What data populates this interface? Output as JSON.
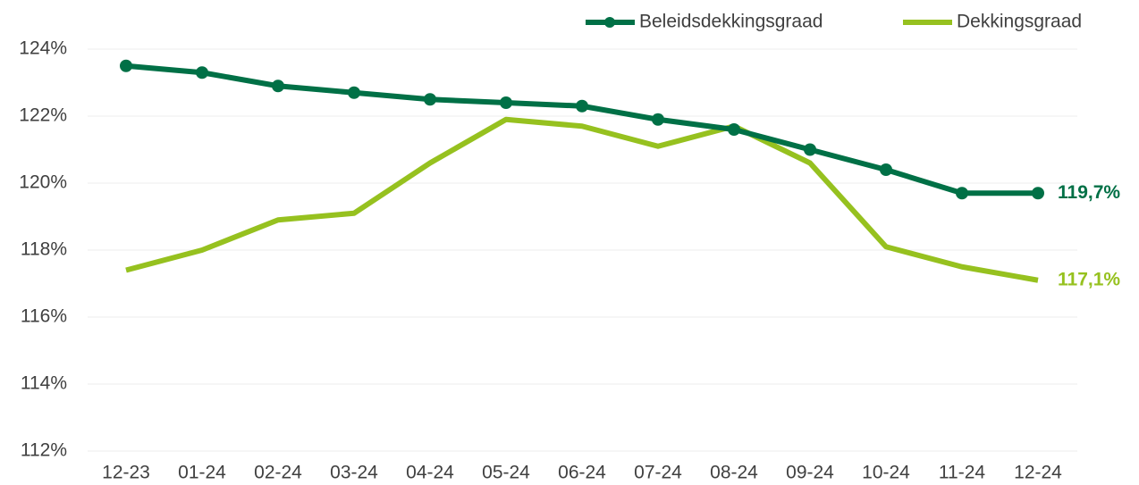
{
  "chart_data": {
    "type": "line",
    "categories": [
      "12-23",
      "01-24",
      "02-24",
      "03-24",
      "04-24",
      "05-24",
      "06-24",
      "07-24",
      "08-24",
      "09-24",
      "10-24",
      "11-24",
      "12-24"
    ],
    "series": [
      {
        "name": "Beleidsdekkingsgraad",
        "color": "#007046",
        "markers": true,
        "values": [
          123.5,
          123.3,
          122.9,
          122.7,
          122.5,
          122.4,
          122.3,
          121.9,
          121.6,
          121.0,
          120.4,
          119.7,
          119.7
        ],
        "value_labels": [
          null,
          null,
          null,
          null,
          null,
          null,
          null,
          null,
          null,
          null,
          null,
          null,
          "119,7%"
        ]
      },
      {
        "name": "Dekkingsgraad",
        "color": "#96c11f",
        "markers": false,
        "values": [
          117.4,
          118.0,
          118.9,
          119.1,
          120.6,
          121.9,
          121.7,
          121.1,
          121.7,
          120.6,
          118.1,
          117.5,
          117.1
        ],
        "value_labels": [
          null,
          null,
          null,
          null,
          null,
          null,
          null,
          null,
          null,
          null,
          null,
          null,
          "117,1%"
        ]
      }
    ],
    "ylim": [
      112,
      124
    ],
    "yticks": [
      {
        "value": 112,
        "label": "112%"
      },
      {
        "value": 114,
        "label": "114%"
      },
      {
        "value": 116,
        "label": "116%"
      },
      {
        "value": 118,
        "label": "118%"
      },
      {
        "value": 120,
        "label": "120%"
      },
      {
        "value": 122,
        "label": "122%"
      },
      {
        "value": 124,
        "label": "124%"
      }
    ],
    "grid": true,
    "legend": "top-right"
  }
}
